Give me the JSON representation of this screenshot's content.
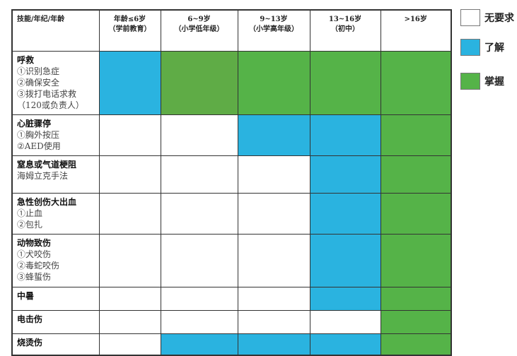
{
  "colors": {
    "none": "#ffffff",
    "know": "#2ab3e0",
    "master": "#55b348",
    "master_alt": "#5fac46"
  },
  "header": [
    "技能/年纪/年龄",
    "年龄≤6岁\n（学前教育）",
    "6~9岁\n（小学低年级）",
    "9~13岁\n（小学高年级）",
    "13~16岁\n（初中）",
    ">16岁"
  ],
  "rows": [
    {
      "title": "呼救",
      "items": [
        "①识别急症",
        "②确保安全",
        "③拨打电话求救",
        "（120或负责人）"
      ],
      "levels": [
        1,
        2,
        2,
        2,
        2
      ]
    },
    {
      "title": "心脏骤停",
      "items": [
        "①胸外按压",
        "②AED使用"
      ],
      "levels": [
        0,
        0,
        1,
        1,
        2
      ]
    },
    {
      "title": "窒息或气道梗阻",
      "items": [
        "海姆立克手法"
      ],
      "levels": [
        0,
        0,
        0,
        1,
        2
      ]
    },
    {
      "title": "急性创伤大出血",
      "items": [
        "①止血",
        "②包扎"
      ],
      "levels": [
        0,
        0,
        0,
        1,
        2
      ]
    },
    {
      "title": "动物致伤",
      "items": [
        "①犬咬伤",
        "②毒蛇咬伤",
        "③蜂蜇伤"
      ],
      "levels": [
        0,
        0,
        0,
        1,
        2
      ]
    },
    {
      "title": "中暑",
      "items": [],
      "levels": [
        0,
        0,
        0,
        1,
        2
      ]
    },
    {
      "title": "电击伤",
      "items": [],
      "levels": [
        0,
        0,
        0,
        0,
        2
      ]
    },
    {
      "title": "烧烫伤",
      "items": [],
      "levels": [
        0,
        1,
        1,
        1,
        2
      ]
    }
  ],
  "legend": [
    {
      "key": "none",
      "label": "无要求"
    },
    {
      "key": "know",
      "label": "了解"
    },
    {
      "key": "master",
      "label": "掌握"
    }
  ]
}
